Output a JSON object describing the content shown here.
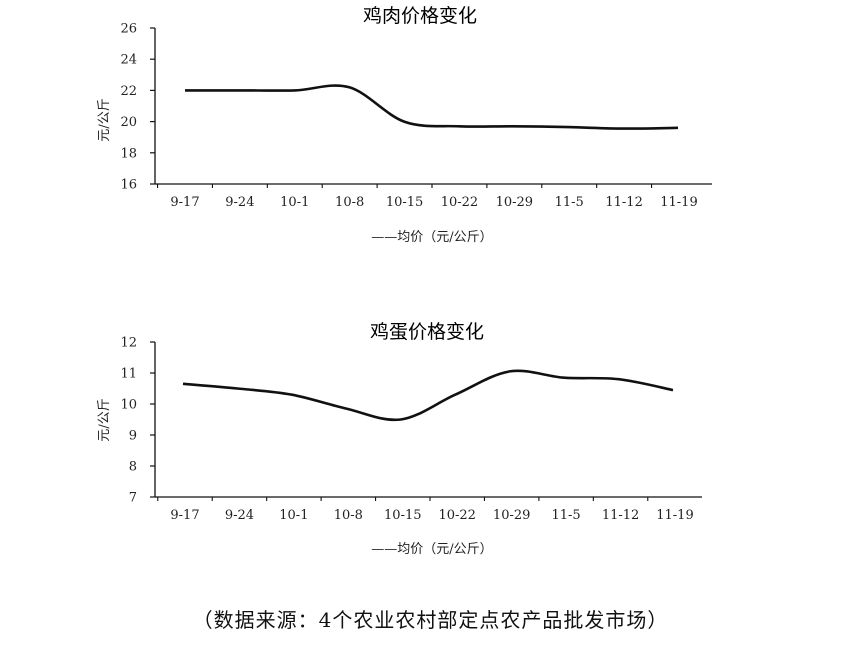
{
  "chart_data": [
    {
      "type": "line",
      "title": "鸡肉价格变化",
      "ylabel": "元/公斤",
      "ylim": [
        16,
        26
      ],
      "yticks": [
        16,
        18,
        20,
        22,
        24,
        26
      ],
      "categories": [
        "9-17",
        "9-24",
        "10-1",
        "10-8",
        "10-15",
        "10-22",
        "10-29",
        "11-5",
        "11-12",
        "11-19"
      ],
      "series": [
        {
          "name": "均价（元/公斤）",
          "values": [
            22.0,
            22.0,
            22.0,
            22.2,
            20.0,
            19.7,
            19.7,
            19.65,
            19.55,
            19.6
          ]
        }
      ],
      "legend": "——均价（元/公斤）",
      "legend_position": "bottom",
      "grid": false
    },
    {
      "type": "line",
      "title": "鸡蛋价格变化",
      "ylabel": "元/公斤",
      "ylim": [
        7,
        12
      ],
      "yticks": [
        7,
        8,
        9,
        10,
        11,
        12
      ],
      "categories": [
        "9-17",
        "9-24",
        "10-1",
        "10-8",
        "10-15",
        "10-22",
        "10-29",
        "11-5",
        "11-12",
        "11-19"
      ],
      "series": [
        {
          "name": "均价（元/公斤）",
          "values": [
            10.65,
            10.5,
            10.3,
            9.85,
            9.5,
            10.3,
            11.05,
            10.85,
            10.8,
            10.45
          ]
        }
      ],
      "legend": "——均价（元/公斤）",
      "legend_position": "bottom",
      "grid": false
    }
  ],
  "source": "（数据来源：4个农业农村部定点农产品批发市场）"
}
